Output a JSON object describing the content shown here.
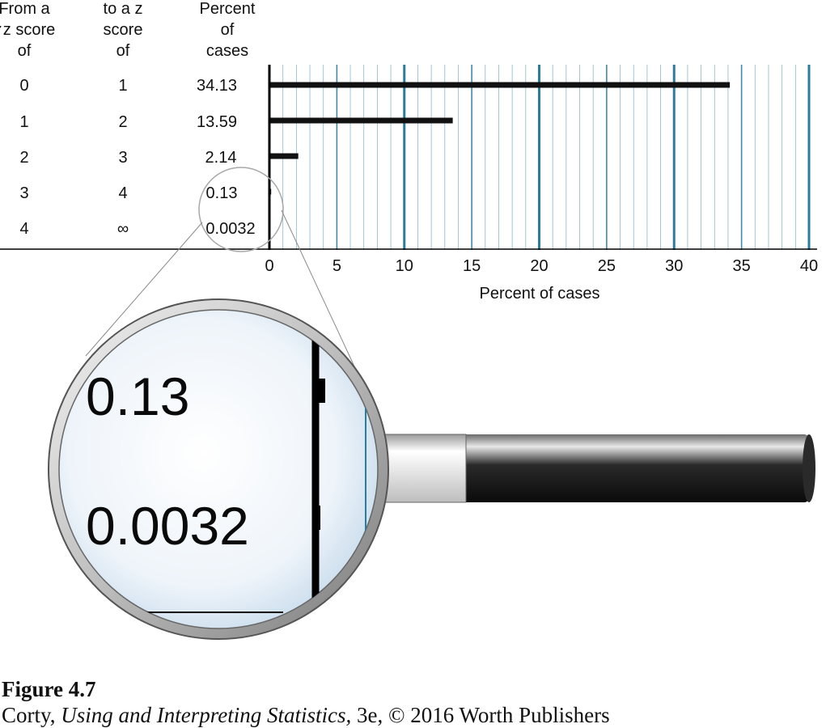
{
  "table": {
    "headers": [
      [
        "From a",
        "z score",
        "of"
      ],
      [
        "to a z",
        "score",
        "of"
      ],
      [
        "Percent",
        "of",
        "cases"
      ]
    ],
    "rows": [
      {
        "from": "0",
        "to": "1",
        "percent": "34.13"
      },
      {
        "from": "1",
        "to": "2",
        "percent": "13.59"
      },
      {
        "from": "2",
        "to": "3",
        "percent": "2.14"
      },
      {
        "from": "3",
        "to": "4",
        "percent": "0.13"
      },
      {
        "from": "4",
        "to": "∞",
        "percent": "0.0032"
      }
    ]
  },
  "chart_data": {
    "type": "bar",
    "orientation": "horizontal",
    "categories": [
      "0 to 1",
      "1 to 2",
      "2 to 3",
      "3 to 4",
      "4 to ∞"
    ],
    "values": [
      34.13,
      13.59,
      2.14,
      0.13,
      0.0032
    ],
    "xlabel": "Percent of cases",
    "xlim": [
      0,
      40
    ],
    "xticks": [
      "0",
      "5",
      "10",
      "15",
      "20",
      "25",
      "30",
      "35",
      "40"
    ],
    "grid": true,
    "bar_color": "#111111",
    "grid_color": "#2b7d9e"
  },
  "magnifier": {
    "labels": [
      "0.13",
      "0.0032"
    ]
  },
  "caption": {
    "figure": "Figure 4.7",
    "author": "Corty, ",
    "book": "Using and Interpreting Statistics,",
    "rest": " 3e, © 2016 Worth Publishers"
  }
}
